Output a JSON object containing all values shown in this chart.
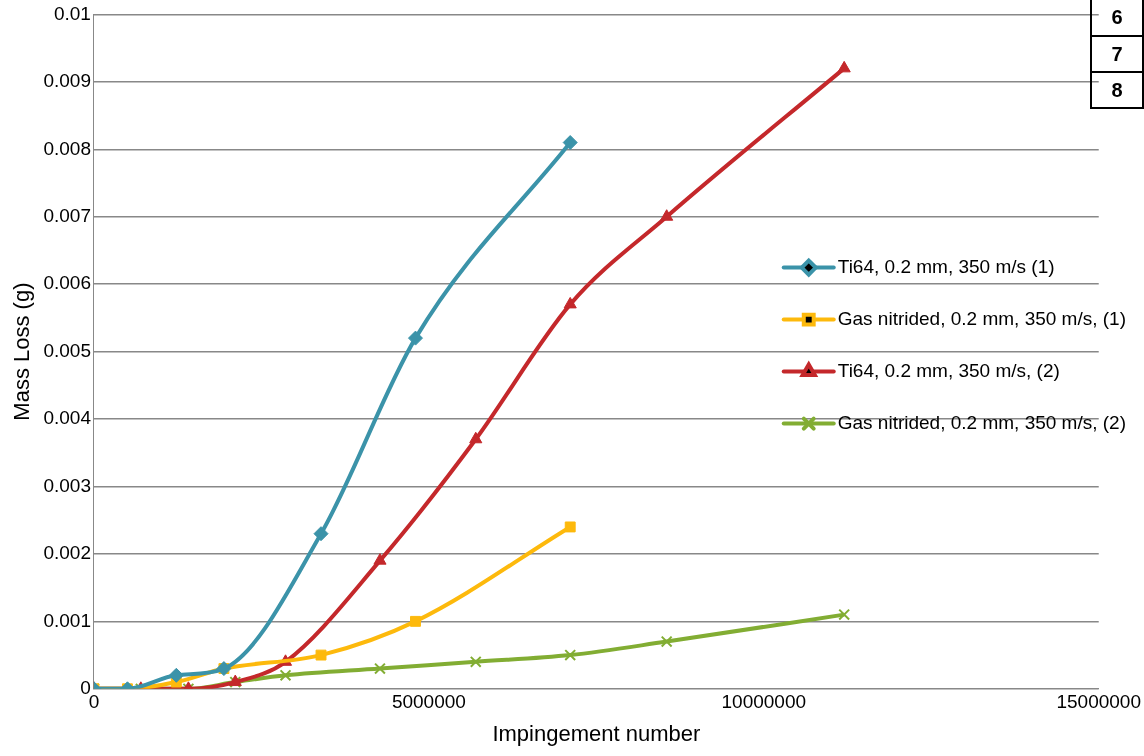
{
  "chart_data": {
    "type": "line",
    "xlabel": "Impingement number",
    "ylabel": "Mass Loss (g)",
    "xlim": [
      0,
      15000000
    ],
    "xticks": [
      0,
      5000000,
      10000000,
      15000000
    ],
    "ylim": [
      0,
      0.01
    ],
    "yticks": [
      0,
      0.001,
      0.002,
      0.003,
      0.004,
      0.005,
      0.006,
      0.007,
      0.008,
      0.009,
      0.01
    ],
    "grid": "y",
    "legend": "right",
    "annotations": [
      "6",
      "7",
      "8"
    ],
    "series": [
      {
        "name": "Ti64, 0.2 mm, 350 m/s (1)",
        "color": "#3b93a9",
        "marker": "diamond",
        "x": [
          0,
          500000,
          1230000,
          1940000,
          3390000,
          4800000,
          7110000
        ],
        "values": [
          0,
          0,
          0.0002,
          0.0003,
          0.0023,
          0.0052,
          0.0081
        ]
      },
      {
        "name": "Gas nitrided, 0.2 mm, 350 m/s, (1)",
        "color": "#fdb90c",
        "marker": "square",
        "x": [
          0,
          500000,
          1230000,
          1940000,
          3390000,
          4800000,
          7110000
        ],
        "values": [
          0,
          0,
          0.0001,
          0.0003,
          0.0005,
          0.001,
          0.0024
        ]
      },
      {
        "name": "Ti64, 0.2 mm, 350 m/s, (2)",
        "color": "#c4282b",
        "marker": "triangle",
        "x": [
          0,
          700000,
          1410000,
          2110000,
          2860000,
          4270000,
          5700000,
          7110000,
          8550000,
          11200000
        ],
        "values": [
          0,
          0,
          0,
          0.0001,
          0.0004,
          0.0019,
          0.0037,
          0.0057,
          0.007,
          0.0092
        ]
      },
      {
        "name": "Gas nitrided, 0.2 mm, 350 m/s, (2)",
        "color": "#82ad33",
        "marker": "cross",
        "x": [
          0,
          700000,
          1410000,
          2110000,
          2860000,
          4270000,
          5700000,
          7110000,
          8550000,
          11200000
        ],
        "values": [
          0,
          0,
          0,
          0.0001,
          0.0002,
          0.0003,
          0.0004,
          0.0005,
          0.0007,
          0.0011
        ]
      }
    ]
  }
}
